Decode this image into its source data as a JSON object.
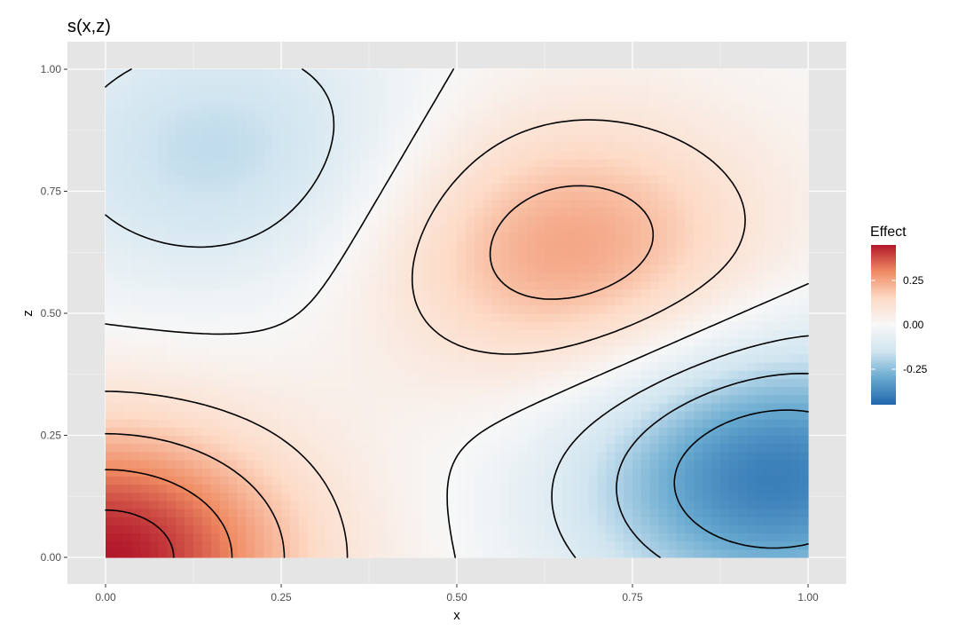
{
  "chart_data": {
    "type": "heatmap",
    "title": "s(x,z)",
    "xlabel": "x",
    "ylabel": "z",
    "xlim": [
      -0.05,
      1.05
    ],
    "ylim": [
      -0.05,
      1.05
    ],
    "x_ticks": [
      0,
      0.25,
      0.5,
      0.75,
      1
    ],
    "x_tick_labels": [
      "0.00",
      "0.25",
      "0.50",
      "0.75",
      "1.00"
    ],
    "y_ticks": [
      0,
      0.25,
      0.5,
      0.75,
      1
    ],
    "y_tick_labels": [
      "0.00",
      "0.25",
      "0.50",
      "0.75",
      "1.00"
    ],
    "grid": true,
    "background": "#e5e5e5",
    "legend": {
      "title": "Effect",
      "placement": "right",
      "range": [
        -0.45,
        0.45
      ],
      "ticks": [
        0.25,
        0,
        -0.25
      ],
      "tick_labels": [
        "0.25",
        "0.00",
        "-0.25"
      ],
      "colors": [
        "#b2182b",
        "#ef8a62",
        "#fddbc7",
        "#f7f7f7",
        "#d1e5f0",
        "#67a9cf",
        "#2166ac"
      ]
    },
    "surface_features": [
      {
        "kind": "minimum",
        "x": 0.17,
        "z": 0.83,
        "value": -0.18
      },
      {
        "kind": "maximum",
        "x": 0.66,
        "z": 0.63,
        "value": 0.26
      },
      {
        "kind": "maximum",
        "x": 0.0,
        "z": 0.0,
        "value": 0.45
      },
      {
        "kind": "minimum",
        "x": 0.95,
        "z": 0.17,
        "value": -0.4
      }
    ],
    "contour_levels": [
      -0.3,
      -0.2,
      -0.1,
      0,
      0.1,
      0.2,
      0.3,
      0.4
    ]
  }
}
